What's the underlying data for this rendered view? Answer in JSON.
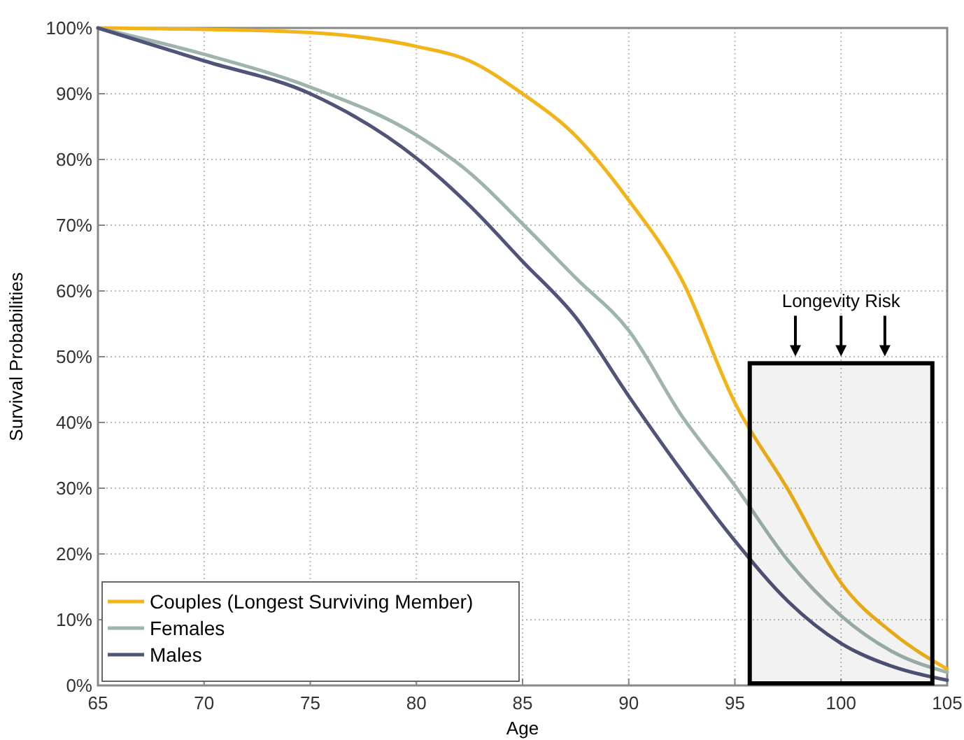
{
  "chart_data": {
    "type": "line",
    "xlabel": "Age",
    "ylabel": "Survival Probabilities",
    "x": [
      65,
      70,
      75,
      80,
      82.5,
      85,
      87.5,
      90,
      92.5,
      95,
      97.5,
      100,
      102.5,
      105
    ],
    "series": [
      {
        "name": "Couples (Longest Surviving Member)",
        "color": "#f2b418",
        "values": [
          100,
          99.8,
          99.3,
          97.2,
          95,
          90,
          83.6,
          73.8,
          61.7,
          43,
          29.8,
          15.6,
          7.8,
          2.5
        ]
      },
      {
        "name": "Females",
        "color": "#9fb4ac",
        "values": [
          100,
          96,
          91,
          83.7,
          78,
          70.2,
          62,
          54,
          41,
          30.4,
          19,
          10.6,
          5,
          2
        ]
      },
      {
        "name": "Males",
        "color": "#505478",
        "values": [
          100,
          95,
          90,
          80.2,
          73,
          64.5,
          56,
          44,
          32.6,
          22,
          12.8,
          6.4,
          2.8,
          0.8
        ]
      }
    ],
    "xlim": [
      65,
      105
    ],
    "xticks": [
      65,
      70,
      75,
      80,
      85,
      90,
      95,
      100,
      105
    ],
    "ylim": [
      0,
      100
    ],
    "yticks": [
      {
        "value": 0,
        "label": "0%"
      },
      {
        "value": 10,
        "label": "10%"
      },
      {
        "value": 20,
        "label": "20%"
      },
      {
        "value": 30,
        "label": "30%"
      },
      {
        "value": 40,
        "label": "40%"
      },
      {
        "value": 50,
        "label": "50%"
      },
      {
        "value": 60,
        "label": "60%"
      },
      {
        "value": 70,
        "label": "70%"
      },
      {
        "value": 80,
        "label": "80%"
      },
      {
        "value": 90,
        "label": "90%"
      },
      {
        "value": 100,
        "label": "100%"
      }
    ],
    "grid": true,
    "legend": "bottom left",
    "line_style": "solid",
    "marker": "none",
    "bands": [
      {
        "axis": "x",
        "from": 95.7,
        "to": 104.3,
        "label": "Longevity Risk",
        "color": "#000000"
      }
    ]
  }
}
